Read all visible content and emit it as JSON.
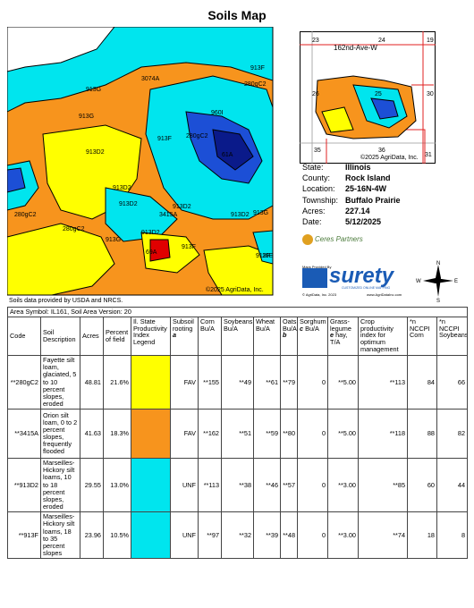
{
  "header": {
    "title": "Soils Map"
  },
  "map": {
    "labels": [
      "3074A",
      "913G",
      "280gC2",
      "913F",
      "960I",
      "913G",
      "913D2",
      "913F",
      "280gC2",
      "61A",
      "913D2",
      "913D2",
      "3415A",
      "913D2",
      "280gC2",
      "913D2",
      "913G",
      "913D2",
      "913F",
      "913G",
      "280gC2",
      "913F",
      "69A",
      "19E"
    ],
    "copyright": "©2025 AgriData, Inc."
  },
  "locator": {
    "sections": [
      "23",
      "24",
      "19",
      "26",
      "25",
      "30",
      "35",
      "36",
      "31"
    ],
    "road": "162nd-Ave-W",
    "copyright": "©2025 AgriData, Inc."
  },
  "info": [
    {
      "label": "State:",
      "value": "Illinois"
    },
    {
      "label": "County:",
      "value": "Rock Island"
    },
    {
      "label": "Location:",
      "value": "25-16N-4W"
    },
    {
      "label": "Township:",
      "value": "Buffalo Prairie"
    },
    {
      "label": "Acres:",
      "value": "227.14"
    },
    {
      "label": "Date:",
      "value": "5/12/2025"
    }
  ],
  "logos": {
    "ceres": "Ceres Partners",
    "provided": "Maps Provided By",
    "surety": "surety",
    "tagline": "CUSTOMIZED ONLINE MAPPING",
    "agridata": "© AgriData, Inc. 2023",
    "url": "www.AgriDataInc.com",
    "compass": {
      "n": "N",
      "s": "S",
      "e": "E",
      "w": "W"
    }
  },
  "source": "Soils data provided by USDA and NRCS.",
  "table": {
    "caption": "Area Symbol: IL161, Soil Area Version: 20",
    "headers": [
      {
        "text": "Code"
      },
      {
        "text": "Soil Description"
      },
      {
        "text": "Acres"
      },
      {
        "text": "Percent of field"
      },
      {
        "text": "Il. State Productivity Index Legend"
      },
      {
        "text": "Subsoil rooting",
        "note": "a"
      },
      {
        "text": "Corn Bu/A"
      },
      {
        "text": "Soybeans Bu/A"
      },
      {
        "text": "Wheat Bu/A"
      },
      {
        "text": "Oats Bu/A",
        "note": "b"
      },
      {
        "text": "Sorghum",
        "note": "c",
        "after": "Bu/A"
      },
      {
        "text": "Grass-legume",
        "note": "e",
        "after": "hay, T/A"
      },
      {
        "text": "Crop productivity index for optimum management"
      },
      {
        "text": "*n NCCPI Corn"
      },
      {
        "text": "*n NCCPI Soybeans"
      }
    ],
    "rows": [
      {
        "cells": [
          "**280gC2",
          "Fayette silt loam, glaciated, 5 to 10 percent slopes, eroded",
          "48.81",
          "21.6%",
          "FAV",
          "**155",
          "**49",
          "**61",
          "**79",
          "0",
          "**5.00",
          "**113",
          "84",
          "66"
        ],
        "color": "#ffff00"
      },
      {
        "cells": [
          "**3415A",
          "Orion silt loam, 0 to 2 percent slopes, frequently flooded",
          "41.63",
          "18.3%",
          "FAV",
          "**162",
          "**51",
          "**59",
          "**80",
          "0",
          "**5.00",
          "**118",
          "88",
          "82"
        ],
        "color": "#f7941d"
      },
      {
        "cells": [
          "**913D2",
          "Marseilles-Hickory silt loams, 10 to 18 percent slopes, eroded",
          "29.55",
          "13.0%",
          "UNF",
          "**113",
          "**38",
          "**46",
          "**57",
          "0",
          "**3.00",
          "**85",
          "60",
          "44"
        ],
        "color": "#00e5ee"
      },
      {
        "cells": [
          "**913F",
          "Marseilles-Hickory silt loams, 18 to 35 percent slopes",
          "23.96",
          "10.5%",
          "UNF",
          "**97",
          "**32",
          "**39",
          "**48",
          "0",
          "**3.00",
          "**74",
          "18",
          "8"
        ],
        "color": "#00e5ee"
      }
    ]
  }
}
